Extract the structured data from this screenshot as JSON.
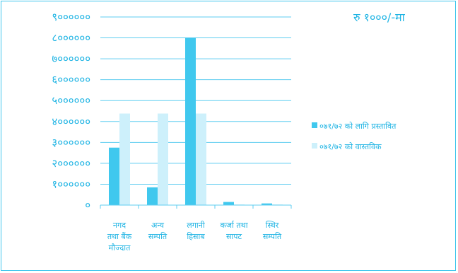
{
  "chart_data": {
    "type": "bar",
    "unit_note": "रु १०००/-मा",
    "categories": [
      [
        "नगद",
        "तथा बैंक",
        "मौज्दात"
      ],
      [
        "अन्य",
        "सम्पति"
      ],
      [
        "लगानी",
        "हिसाब"
      ],
      [
        "कर्जा तथा",
        "सापट"
      ],
      [
        "स्थिर",
        "सम्पति"
      ]
    ],
    "series": [
      {
        "name": "०७१/७२ को लागि प्रस्तावित",
        "color": "#40c8ee",
        "values": [
          2750000,
          850000,
          8000000,
          150000,
          80000
        ]
      },
      {
        "name": "०७१/७२ को वास्तविक",
        "color": "#cdf0fb",
        "values": [
          4380000,
          4380000,
          4380000,
          30000,
          30000
        ]
      }
    ],
    "ylim": [
      0,
      9000000
    ],
    "y_ticks": [
      "०",
      "१००००००",
      "२००००००",
      "३००००००",
      "४००००००",
      "५००००००",
      "६००००००",
      "७००००००",
      "८००००००",
      "९००००००"
    ],
    "grid": true,
    "legend_position": "right"
  }
}
